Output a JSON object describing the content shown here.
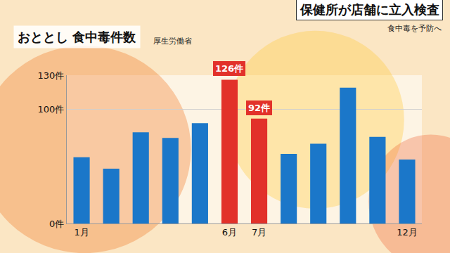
{
  "chart_data": {
    "type": "bar",
    "title": "おととし 食中毒件数",
    "source": "厚生労働省",
    "annotations": [
      "保健所が店舗に立入検査",
      "食中毒を予防へ"
    ],
    "categories": [
      "1月",
      null,
      null,
      null,
      null,
      "6月",
      "7月",
      null,
      null,
      null,
      null,
      "12月"
    ],
    "values": [
      58,
      48,
      80,
      75,
      88,
      126,
      92,
      61,
      70,
      119,
      76,
      56
    ],
    "value_labels": [
      null,
      null,
      null,
      null,
      null,
      "126件",
      "92件",
      null,
      null,
      null,
      null,
      null
    ],
    "data_labels": true,
    "colors": [
      "#1b77c9",
      "#1b77c9",
      "#1b77c9",
      "#1b77c9",
      "#1b77c9",
      "#e2312a",
      "#e2312a",
      "#1b77c9",
      "#1b77c9",
      "#1b77c9",
      "#1b77c9",
      "#1b77c9"
    ],
    "ylim": [
      0,
      130
    ],
    "yticks": [
      {
        "value": 0,
        "label": "0件"
      },
      {
        "value": 100,
        "label": "100件"
      },
      {
        "value": 130,
        "label": "130件"
      }
    ],
    "grid": true
  }
}
